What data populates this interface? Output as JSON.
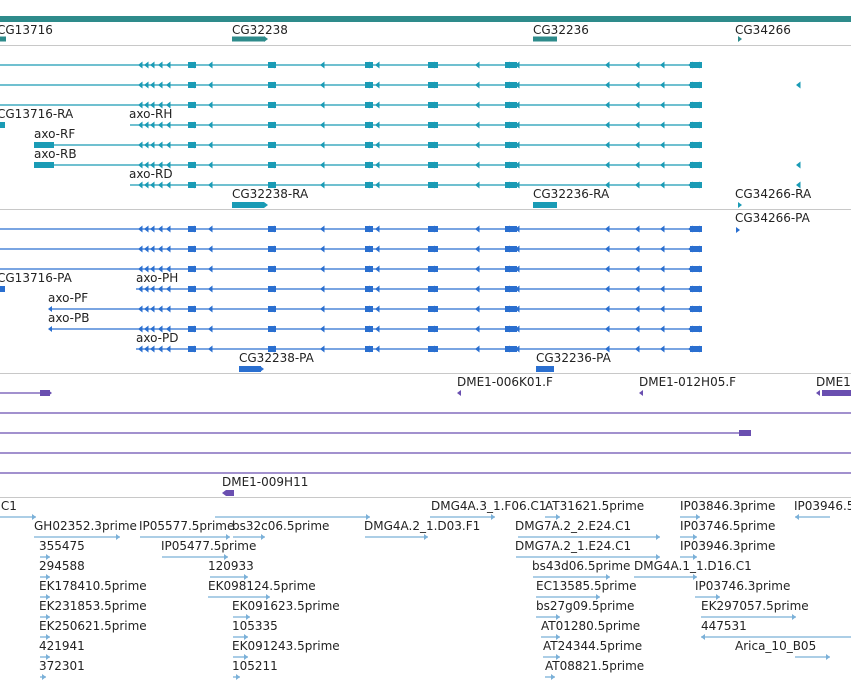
{
  "colors": {
    "gene": "#2e8b8b",
    "transcript": "#1a9bb5",
    "protein": "#2a6fd0",
    "clone": "#6a4fb0",
    "est": "#7ab0d8",
    "border": "#c8c8c8"
  },
  "genes": {
    "labels": [
      "CG13716",
      "CG32238",
      "CG32236",
      "CG34266"
    ]
  },
  "transcripts": {
    "labels": [
      "CG13716-RA",
      "axo-RH",
      "axo-RF",
      "axo-RB",
      "axo-RD",
      "CG32238-RA",
      "CG32236-RA",
      "CG34266-RA"
    ]
  },
  "proteins": {
    "labels": [
      "CG34266-PA",
      "CG13716-PA",
      "axo-PH",
      "axo-PF",
      "axo-PB",
      "axo-PD",
      "CG32238-PA",
      "CG32236-PA"
    ]
  },
  "clones": {
    "labels": [
      "DME1-006K01.F",
      "DME1-012H05.F",
      "DME1",
      "DME1-009H11"
    ]
  },
  "ests": {
    "labels": [
      ".C1",
      "DMG4A.3_1.F06.C1",
      "AT31621.5prime",
      "IP03846.3prime",
      "IP03946.5",
      "GH02352.3prime",
      "IP05577.5prime",
      "bs32c06.5prime",
      "DMG4A.2_1.D03.F1",
      "DMG7A.2_2.E24.C1",
      "IP03746.5prime",
      "355475",
      "IP05477.5prime",
      "DMG7A.2_1.E24.C1",
      "IP03946.3prime",
      "294588",
      "120933",
      "bs43d06.5prime",
      "DMG4A.1_1.D16.C1",
      "EK178410.5prime",
      "EK098124.5prime",
      "EC13585.5prime",
      "IP03746.3prime",
      "EK231853.5prime",
      "EK091623.5prime",
      "bs27g09.5prime",
      "EK297057.5prime",
      "EK250621.5prime",
      "105335",
      "AT01280.5prime",
      "447531",
      "421941",
      "EK091243.5prime",
      "AT24344.5prime",
      "Arica_10_B05",
      "372301",
      "105211",
      "AT08821.5prime"
    ]
  }
}
